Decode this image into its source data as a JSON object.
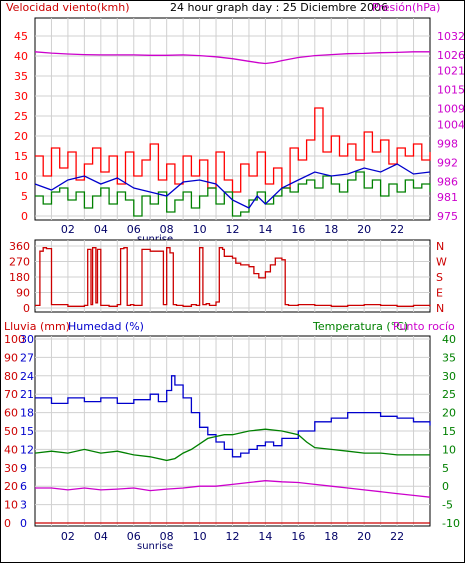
{
  "header": {
    "wind_label": "Velocidad viento(kmh)",
    "title": "24 hour graph day : 25 Diciembre 2006",
    "pressure_label": "Presión(hPa)"
  },
  "bottom_header": {
    "rain_label": "Lluvia (mm)",
    "humidity_label": "Humedad (%)",
    "temp_label": "Temperatura (°C)",
    "dew_label": "Punto rocío"
  },
  "x_ticks": [
    "02",
    "04",
    "06",
    "08",
    "10",
    "12",
    "14",
    "16",
    "18",
    "20",
    "22"
  ],
  "sunrise_label": "sunrise",
  "colors": {
    "wind": "#ff0000",
    "wind_low": "#008000",
    "wind_avg": "#0000cc",
    "pressure": "#cc00cc",
    "direction": "#cc0000",
    "humidity": "#0000cc",
    "temperature": "#008000",
    "dew": "#cc00cc",
    "rain": "#cc0000",
    "grid": "#d0d0d0"
  },
  "chart_data": [
    {
      "type": "line",
      "x_unit": "hour",
      "xlim": [
        0,
        24
      ],
      "y_left": {
        "label": "Velocidad viento(kmh)",
        "lim": [
          0,
          45
        ],
        "ticks": [
          0,
          5,
          10,
          15,
          20,
          25,
          30,
          35,
          40,
          45
        ]
      },
      "y_right": {
        "label": "Presión(hPa)",
        "lim": [
          975,
          1032
        ],
        "ticks": [
          975,
          981,
          986,
          992,
          998,
          1004,
          1009,
          1015,
          1021,
          1026,
          1032
        ]
      },
      "series": [
        {
          "axis": "right",
          "x": [
            0,
            1,
            2,
            3,
            4,
            5,
            6,
            7,
            8,
            9,
            10,
            11,
            12,
            13,
            13.6,
            14,
            14.5,
            15,
            16,
            17,
            18,
            19,
            20,
            21,
            22,
            23,
            24
          ],
          "y": [
            1027,
            1026.6,
            1026.3,
            1026.1,
            1026,
            1026,
            1026,
            1025.9,
            1025.9,
            1026,
            1025.8,
            1025.4,
            1024.8,
            1024,
            1023.5,
            1023.3,
            1023.6,
            1024.2,
            1025.2,
            1025.8,
            1026.1,
            1026.4,
            1026.5,
            1026.7,
            1026.8,
            1027,
            1027
          ]
        },
        {
          "axis": "left",
          "x": [
            0,
            0.5,
            1,
            1.5,
            2,
            2.5,
            3,
            3.5,
            4,
            4.5,
            5,
            5.5,
            6,
            6.5,
            7,
            7.5,
            8,
            8.5,
            9,
            9.5,
            10,
            10.5,
            11,
            11.5,
            12,
            12.5,
            13,
            13.5,
            14,
            14.5,
            15,
            15.5,
            16,
            16.5,
            17,
            17.5,
            18,
            18.5,
            19,
            19.5,
            20,
            20.5,
            21,
            21.5,
            22,
            22.5,
            23,
            23.5,
            24
          ],
          "y": [
            15,
            10,
            17,
            12,
            16,
            9,
            13,
            17,
            11,
            15,
            8,
            16,
            10,
            14,
            18,
            9,
            13,
            8,
            15,
            10,
            14,
            7,
            16,
            9,
            6,
            13,
            10,
            16,
            8,
            12,
            7,
            17,
            14,
            19,
            27,
            16,
            20,
            15,
            18,
            14,
            21,
            16,
            19,
            13,
            17,
            15,
            18,
            14,
            16
          ]
        },
        {
          "axis": "left",
          "x": [
            0,
            0.5,
            1,
            1.5,
            2,
            2.5,
            3,
            3.5,
            4,
            4.5,
            5,
            5.5,
            6,
            6.5,
            7,
            7.5,
            8,
            8.5,
            9,
            9.5,
            10,
            10.5,
            11,
            11.5,
            12,
            12.5,
            13,
            13.5,
            14,
            14.5,
            15,
            15.5,
            16,
            16.5,
            17,
            17.5,
            18,
            18.5,
            19,
            19.5,
            20,
            20.5,
            21,
            21.5,
            22,
            22.5,
            23,
            23.5,
            24
          ],
          "y": [
            5,
            3,
            6,
            7,
            4,
            6,
            2,
            5,
            7,
            3,
            6,
            4,
            0,
            5,
            3,
            6,
            1,
            4,
            6,
            2,
            5,
            7,
            3,
            6,
            0,
            1,
            4,
            6,
            3,
            5,
            7,
            6,
            8,
            9,
            7,
            10,
            8,
            6,
            9,
            11,
            7,
            9,
            5,
            8,
            6,
            9,
            7,
            8,
            6
          ]
        },
        {
          "axis": "left",
          "x": [
            0,
            1,
            2,
            3,
            4,
            5,
            6,
            7,
            8,
            9,
            10,
            11,
            12,
            13,
            13.5,
            14,
            15,
            16,
            17,
            18,
            19,
            20,
            21,
            22,
            23,
            24
          ],
          "y": [
            8,
            6.5,
            9,
            10,
            8,
            9.5,
            7,
            6,
            5,
            8.5,
            9,
            8,
            4,
            2,
            5,
            3,
            7,
            9,
            11,
            10,
            10.5,
            12,
            11,
            13,
            10.5,
            11
          ]
        }
      ]
    },
    {
      "type": "line",
      "x_unit": "hour",
      "xlim": [
        0,
        24
      ],
      "y_left": {
        "lim": [
          0,
          360
        ],
        "ticks": [
          0,
          90,
          180,
          270,
          360
        ]
      },
      "y_right": {
        "ticks": [
          "N",
          "W",
          "S",
          "E",
          "N"
        ]
      },
      "series": [
        {
          "x": [
            0,
            0.3,
            0.5,
            0.7,
            1,
            2,
            3,
            3.2,
            3.4,
            3.5,
            3.7,
            3.8,
            4,
            4.5,
            5,
            5.2,
            5.4,
            5.6,
            5.8,
            6,
            6.5,
            7,
            7.6,
            7.8,
            8,
            8.2,
            8.4,
            8.6,
            9,
            9.5,
            9.8,
            10,
            10.2,
            10.4,
            10.6,
            11,
            11.2,
            11.4,
            11.5,
            12,
            12.2,
            12.5,
            13,
            13.3,
            13.6,
            14,
            14.3,
            14.6,
            15,
            15.2,
            15.4,
            16,
            17,
            18,
            19,
            20,
            21,
            22,
            23,
            24
          ],
          "y": [
            15,
            330,
            350,
            345,
            20,
            10,
            15,
            340,
            20,
            350,
            30,
            340,
            15,
            10,
            20,
            345,
            350,
            15,
            20,
            15,
            340,
            330,
            330,
            20,
            350,
            320,
            20,
            15,
            10,
            20,
            15,
            350,
            20,
            25,
            15,
            35,
            350,
            340,
            300,
            290,
            260,
            250,
            240,
            200,
            175,
            210,
            250,
            290,
            280,
            20,
            15,
            20,
            15,
            10,
            15,
            20,
            15,
            10,
            15,
            10
          ]
        }
      ]
    },
    {
      "type": "line",
      "x_unit": "hour",
      "xlim": [
        0,
        24
      ],
      "y_left": [
        {
          "label": "Lluvia (mm)",
          "ticks": [
            0,
            10,
            20,
            30,
            40,
            50,
            60,
            70,
            80,
            90,
            100
          ]
        },
        {
          "label": "Humedad (%)",
          "ticks": [
            0,
            3,
            6,
            9,
            12,
            15,
            18,
            21,
            24,
            27,
            30
          ]
        }
      ],
      "y_right": {
        "label": "Temperatura (°C)",
        "lim": [
          -10,
          40
        ],
        "ticks": [
          -10,
          -5,
          0,
          5,
          10,
          15,
          20,
          25,
          30,
          35,
          40
        ]
      },
      "series": [
        {
          "axis": "left",
          "x": [
            0,
            1,
            2,
            3,
            4,
            5,
            6,
            7,
            7.5,
            8,
            8.3,
            8.5,
            9,
            9.5,
            10,
            10.5,
            11,
            11.5,
            12,
            12.5,
            13,
            13.5,
            14,
            14.5,
            15,
            16,
            17,
            18,
            19,
            20,
            21,
            22,
            23,
            24
          ],
          "y": [
            68,
            65,
            68,
            66,
            68,
            65,
            67,
            70,
            66,
            72,
            80,
            75,
            68,
            60,
            52,
            48,
            44,
            40,
            36,
            38,
            40,
            42,
            44,
            42,
            46,
            50,
            55,
            57,
            60,
            60,
            58,
            57,
            55,
            53
          ]
        },
        {
          "axis": "right",
          "x": [
            0,
            1,
            2,
            3,
            4,
            5,
            6,
            7,
            8,
            8.5,
            9,
            9.5,
            10,
            10.5,
            11,
            11.5,
            12,
            13,
            14,
            15,
            16,
            16.5,
            17,
            18,
            19,
            20,
            21,
            22,
            23,
            24
          ],
          "y": [
            9,
            9.5,
            9,
            10,
            9,
            9.5,
            8.5,
            8,
            7,
            7.5,
            9,
            10,
            11.5,
            13,
            13.5,
            14,
            14,
            15,
            15.5,
            15,
            14,
            12,
            10.5,
            10,
            9.5,
            9,
            9,
            8.5,
            8.5,
            8.5
          ]
        },
        {
          "axis": "right",
          "x": [
            0,
            1,
            2,
            3,
            4,
            5,
            6,
            7,
            8,
            9,
            10,
            11,
            12,
            13,
            14,
            15,
            16,
            17,
            18,
            19,
            20,
            21,
            22,
            23,
            24
          ],
          "y": [
            -0.5,
            -0.5,
            -1,
            -0.5,
            -1,
            -0.8,
            -0.5,
            -1.2,
            -0.8,
            -0.5,
            0,
            0,
            0.5,
            1,
            1.5,
            1.2,
            1,
            0.5,
            0,
            -0.5,
            -1,
            -1.5,
            -2,
            -2.5,
            -3
          ]
        },
        {
          "axis": "left",
          "x": [
            0,
            24
          ],
          "y": [
            0,
            0
          ]
        }
      ]
    }
  ]
}
